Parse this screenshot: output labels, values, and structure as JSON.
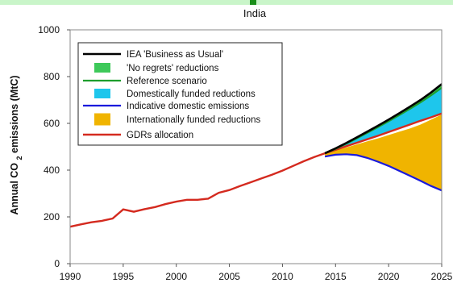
{
  "chart_data": {
    "type": "area",
    "title": "India",
    "xlabel": "",
    "ylabel": "Annual CO₂ emissions (MtC)",
    "xlim": [
      1990,
      2025
    ],
    "ylim": [
      0,
      1000
    ],
    "x_ticks": [
      1990,
      1995,
      2000,
      2005,
      2010,
      2015,
      2020,
      2025
    ],
    "y_ticks": [
      0,
      200,
      400,
      600,
      800,
      1000
    ],
    "grid": false,
    "legend_position": "top-left",
    "history": {
      "x": [
        1990,
        1991,
        1992,
        1993,
        1994,
        1995,
        1996,
        1997,
        1998,
        1999,
        2000,
        2001,
        2002,
        2003,
        2004,
        2005,
        2006,
        2007,
        2008,
        2009,
        2010,
        2011,
        2012,
        2013,
        2014
      ],
      "y": [
        158,
        168,
        177,
        183,
        193,
        232,
        222,
        233,
        242,
        255,
        265,
        273,
        273,
        278,
        303,
        315,
        332,
        348,
        364,
        380,
        398,
        418,
        438,
        456,
        472
      ]
    },
    "projection_x": [
      2014,
      2015,
      2016,
      2017,
      2018,
      2019,
      2020,
      2021,
      2022,
      2023,
      2024,
      2025
    ],
    "series": [
      {
        "name": "IEA 'Business as Usual'",
        "kind": "line",
        "color": "#000000",
        "values": [
          472,
          493,
          516,
          540,
          565,
          590,
          616,
          643,
          671,
          700,
          732,
          768
        ]
      },
      {
        "name": "'No regrets' reductions",
        "kind": "band",
        "color": "#3ec95a",
        "values": [
          472,
          491,
          513,
          536,
          560,
          584,
          609,
          635,
          662,
          690,
          720,
          752
        ]
      },
      {
        "name": "Reference scenario",
        "kind": "line",
        "color": "#1e9e2e",
        "values": [
          472,
          491,
          513,
          536,
          560,
          584,
          609,
          635,
          662,
          690,
          720,
          752
        ]
      },
      {
        "name": "Domestically funded reductions",
        "kind": "band",
        "color": "#1ec6ec",
        "values": [
          472,
          487,
          502,
          517,
          532,
          547,
          563,
          579,
          595,
          611,
          626,
          642
        ]
      },
      {
        "name": "Indicative domestic emissions",
        "kind": "line",
        "color": "#1a1adc",
        "values": [
          458,
          466,
          468,
          464,
          452,
          436,
          418,
          397,
          376,
          354,
          332,
          313
        ]
      },
      {
        "name": "Internationally funded reductions",
        "kind": "band",
        "color": "#f0b400",
        "values": [
          458,
          466,
          468,
          464,
          452,
          436,
          418,
          397,
          376,
          354,
          332,
          313
        ]
      },
      {
        "name": "GDRs allocation",
        "kind": "line",
        "color": "#d42a1f",
        "values": [
          472,
          484,
          497,
          510,
          523,
          536,
          550,
          564,
          578,
          595,
          616,
          638
        ]
      }
    ]
  }
}
